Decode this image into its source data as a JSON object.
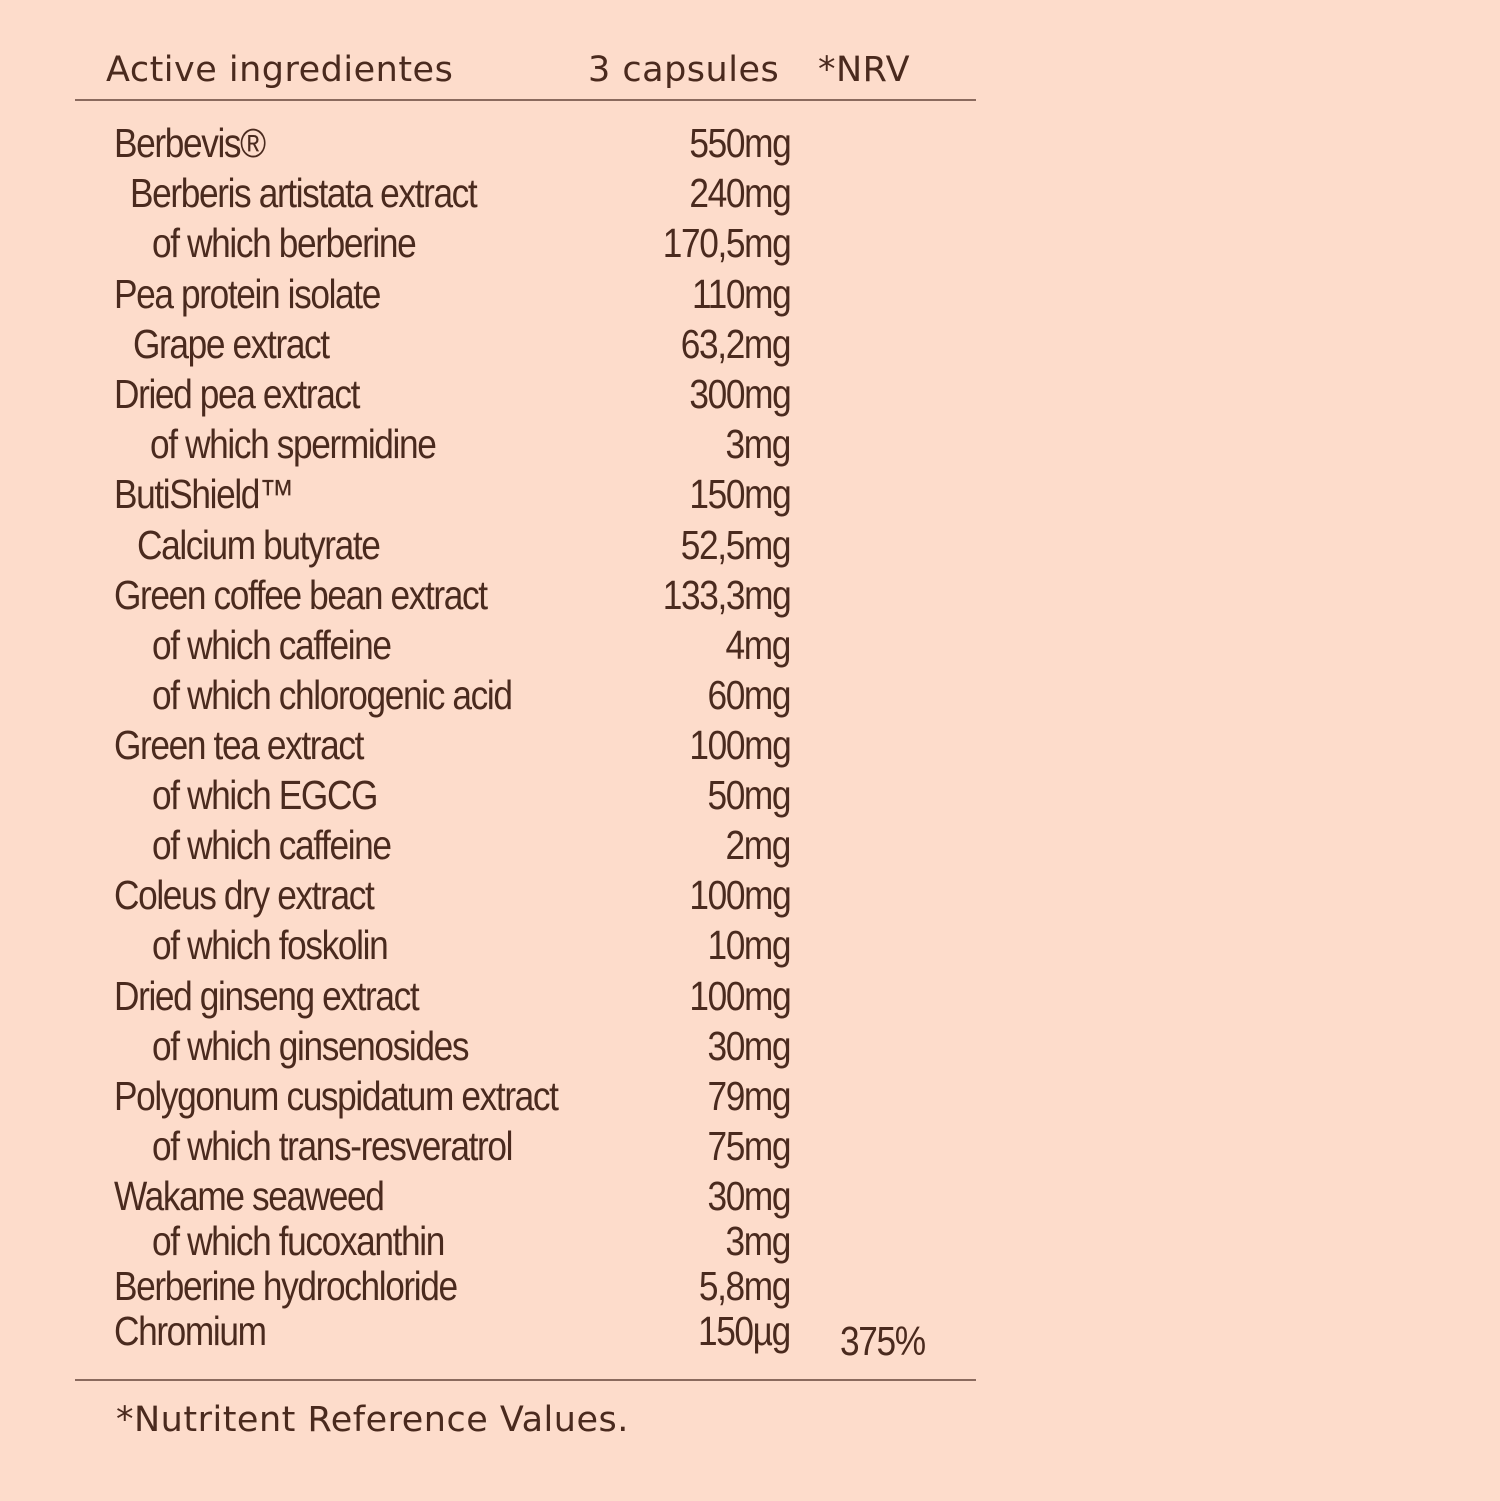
{
  "header": {
    "ingredient": "Active ingredientes",
    "capsules": "3 capsules",
    "nrv": "*NRV"
  },
  "rows": [
    {
      "name": "Berbevis®",
      "amount": "550mg",
      "nrv": ""
    },
    {
      "name": "Berberis artistata extract",
      "amount": "240mg",
      "nrv": ""
    },
    {
      "name": "of which berberine",
      "amount": "170,5mg",
      "nrv": ""
    },
    {
      "name": "Pea protein isolate",
      "amount": "110mg",
      "nrv": ""
    },
    {
      "name": "Grape extract",
      "amount": "63,2mg",
      "nrv": ""
    },
    {
      "name": "Dried pea extract",
      "amount": "300mg",
      "nrv": ""
    },
    {
      "name": "of which spermidine",
      "amount": "3mg",
      "nrv": ""
    },
    {
      "name": "ButiShield™",
      "amount": "150mg",
      "nrv": ""
    },
    {
      "name": "Calcium butyrate",
      "amount": "52,5mg",
      "nrv": ""
    },
    {
      "name": "Green coffee bean extract",
      "amount": "133,3mg",
      "nrv": ""
    },
    {
      "name": "of which caffeine",
      "amount": "4mg",
      "nrv": ""
    },
    {
      "name": "of which chlorogenic acid",
      "amount": "60mg",
      "nrv": ""
    },
    {
      "name": "Green tea extract",
      "amount": "100mg",
      "nrv": ""
    },
    {
      "name": "of which EGCG",
      "amount": "50mg",
      "nrv": ""
    },
    {
      "name": "of which caffeine",
      "amount": "2mg",
      "nrv": ""
    },
    {
      "name": "Coleus dry extract",
      "amount": "100mg",
      "nrv": ""
    },
    {
      "name": "of which foskolin",
      "amount": "10mg",
      "nrv": ""
    },
    {
      "name": "Dried ginseng extract",
      "amount": "100mg",
      "nrv": ""
    },
    {
      "name": "of which ginsenosides",
      "amount": "30mg",
      "nrv": ""
    },
    {
      "name": "Polygonum cuspidatum  extract",
      "amount": "79mg",
      "nrv": ""
    },
    {
      "name": "of which trans-resveratrol",
      "amount": "75mg",
      "nrv": ""
    },
    {
      "name": "Wakame seaweed",
      "amount": "30mg",
      "nrv": ""
    },
    {
      "name": "of which fucoxanthin",
      "amount": "3mg",
      "nrv": ""
    },
    {
      "name": "Berberine hydrochloride",
      "amount": "5,8mg",
      "nrv": ""
    },
    {
      "name": "Chromium",
      "amount": "150µg",
      "nrv": "375%"
    }
  ],
  "footnote": "*Nutritent Reference Values.",
  "colors": {
    "background": "#fddccb",
    "text": "#4a2a1e",
    "rule": "#8a6a5e"
  }
}
